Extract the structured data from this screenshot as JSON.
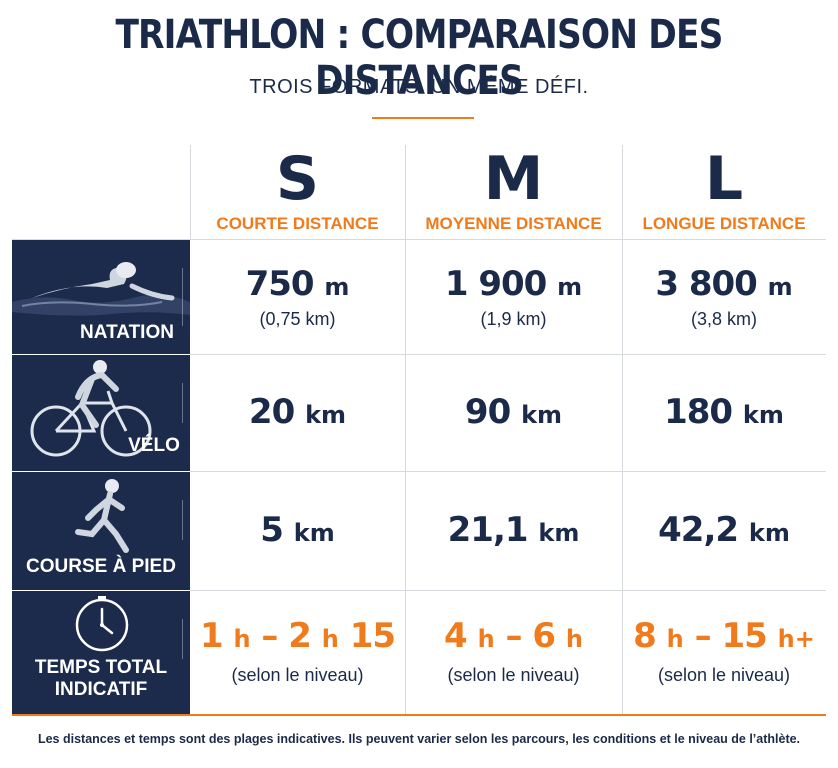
{
  "title": "TRIATHLON : COMPARAISON DES DISTANCES",
  "subtitle": "TROIS FORMATS. UN MÊME DÉFI.",
  "columns": [
    {
      "letter": "S",
      "label": "COURTE DISTANCE"
    },
    {
      "letter": "M",
      "label": "MOYENNE DISTANCE"
    },
    {
      "letter": "L",
      "label": "LONGUE DISTANCE"
    }
  ],
  "rows": {
    "natation": {
      "label": "NATATION",
      "cells": [
        {
          "value": "750",
          "unit": "m",
          "sub": "(0,75 km)"
        },
        {
          "value": "1 900",
          "unit": "m",
          "sub": "(1,9 km)"
        },
        {
          "value": "3 800",
          "unit": "m",
          "sub": "(3,8 km)"
        }
      ]
    },
    "velo": {
      "label": "VÉLO",
      "cells": [
        {
          "value": "20",
          "unit": "km"
        },
        {
          "value": "90",
          "unit": "km"
        },
        {
          "value": "180",
          "unit": "km"
        }
      ]
    },
    "course": {
      "label": "COURSE À PIED",
      "cells": [
        {
          "value": "5",
          "unit": "km"
        },
        {
          "value": "21,1",
          "unit": "km"
        },
        {
          "value": "42,2",
          "unit": "km"
        }
      ]
    },
    "temps": {
      "label_line1": "TEMPS TOTAL",
      "label_line2": "INDICATIF",
      "cells": [
        {
          "a": "1",
          "u1": "h",
          "dash": "–",
          "b": "2",
          "u2": "h",
          "c": "15",
          "sub": "(selon le niveau)"
        },
        {
          "a": "4",
          "u1": "h",
          "dash": "–",
          "b": "6",
          "u2": "h",
          "c": "",
          "sub": "(selon le niveau)"
        },
        {
          "a": "8",
          "u1": "h",
          "dash": "–",
          "b": "15",
          "u2": "h+",
          "c": "",
          "sub": "(selon le niveau)"
        }
      ]
    }
  },
  "footnote": "Les distances et temps sont des plages indicatives. Ils peuvent varier selon les parcours, les conditions et le niveau de l’athlète.",
  "colors": {
    "navy": "#1c2b4b",
    "accent": "#f07b1d",
    "grid": "#d6d9de"
  },
  "icons": [
    "swimmer-illustration",
    "cyclist-illustration",
    "runner-illustration",
    "clock-icon"
  ]
}
